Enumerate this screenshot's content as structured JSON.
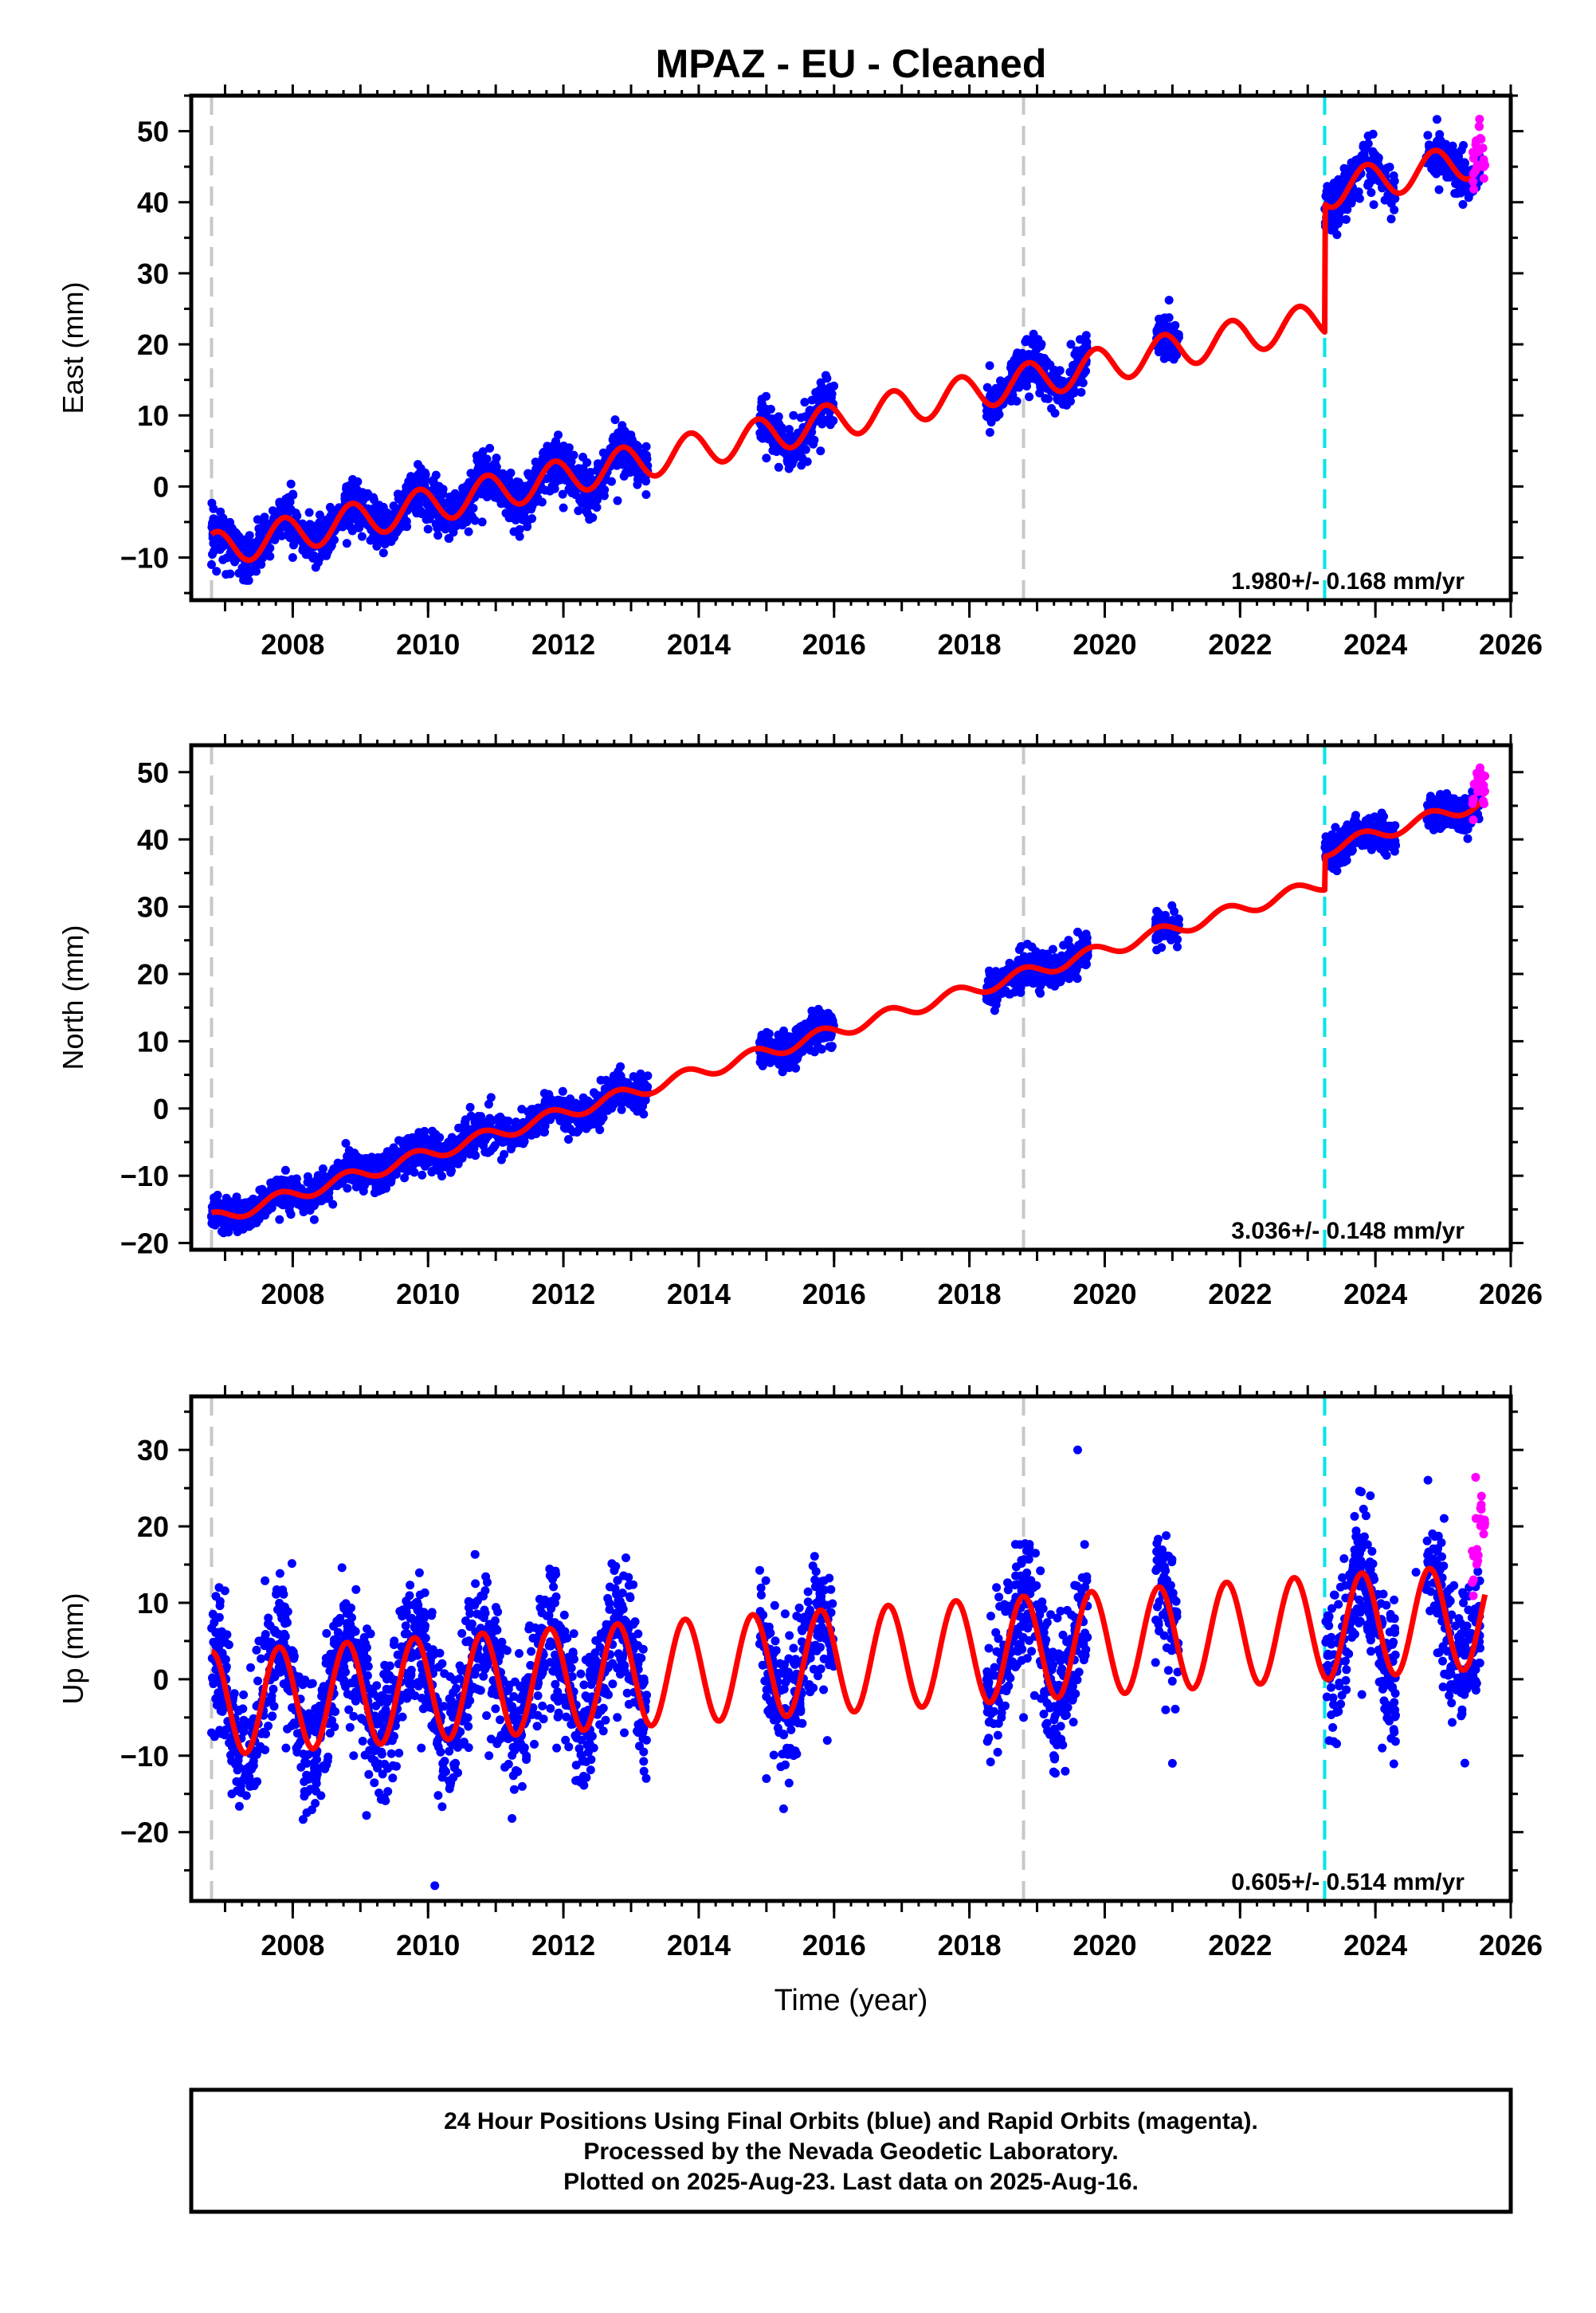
{
  "title": "MPAZ  - EU - Cleaned",
  "footer": {
    "line1": "24 Hour Positions Using Final Orbits (blue) and Rapid Orbits (magenta).",
    "line2": "Processed by the Nevada Geodetic Laboratory.",
    "line3": "Plotted on 2025-Aug-23. Last data on 2025-Aug-16."
  },
  "colors": {
    "final_orbits": "#0000ff",
    "rapid_orbits": "#ff00ff",
    "model_fit": "#ff0000",
    "equipment_change": "#c8c8c8",
    "earthquake": "#00e6e6"
  },
  "chart_data": [
    {
      "type": "scatter",
      "panel": "east",
      "ylabel": "East (mm)",
      "xlabel": "",
      "xlim": [
        2006.5,
        2026.0
      ],
      "ylim": [
        -16,
        55
      ],
      "xticks": [
        "2008",
        "2010",
        "2012",
        "2014",
        "2016",
        "2018",
        "2020",
        "2022",
        "2024",
        "2026"
      ],
      "yticks": [
        "50",
        "40",
        "30",
        "20",
        "10",
        "0",
        "−10"
      ],
      "rate_text": "1.980+/- 0.168 mm/yr",
      "series": [
        {
          "name": "Final Orbits",
          "x": [
            2006.8,
            2007.2,
            2007.6,
            2008.0,
            2008.4,
            2008.8,
            2009.2,
            2009.6,
            2010.0,
            2010.4,
            2010.8,
            2011.2,
            2011.6,
            2012.0,
            2012.4,
            2012.8,
            2013.1,
            2015.0,
            2015.4,
            2015.8,
            2018.3,
            2018.7,
            2019.1,
            2019.5,
            2020.8,
            2021.0,
            2023.3,
            2023.7,
            2024.1,
            2024.9,
            2025.3
          ],
          "y": [
            -11,
            -8,
            -6,
            -10,
            -4,
            -8,
            -5,
            -3,
            -6,
            -1,
            -5,
            -2,
            0,
            -3,
            2,
            -2,
            1,
            4,
            10,
            5,
            17,
            12,
            16,
            20,
            20,
            19,
            42,
            44,
            42,
            44,
            48
          ]
        },
        {
          "name": "Rapid Orbits",
          "x": [
            2025.45,
            2025.5,
            2025.55,
            2025.6
          ],
          "y": [
            44,
            47,
            49,
            46
          ]
        }
      ],
      "model_params": {
        "t0": 2006.8,
        "y0": -9.0,
        "rate": 1.98,
        "annual_amp": 2.5,
        "annual_phase": 0.62,
        "offsets": [
          {
            "t": 2023.25,
            "size": 18.0
          }
        ]
      },
      "vlines": {
        "equipment": [
          2006.8,
          2018.8
        ],
        "earthquake": [
          2023.25
        ]
      }
    },
    {
      "type": "scatter",
      "panel": "north",
      "ylabel": "North (mm)",
      "xlabel": "",
      "xlim": [
        2006.5,
        2026.0
      ],
      "ylim": [
        -21,
        54
      ],
      "xticks": [
        "2008",
        "2010",
        "2012",
        "2014",
        "2016",
        "2018",
        "2020",
        "2022",
        "2024",
        "2026"
      ],
      "yticks": [
        "50",
        "40",
        "30",
        "20",
        "10",
        "0",
        "−10",
        "−20"
      ],
      "rate_text": "3.036+/- 0.148 mm/yr",
      "series": [
        {
          "name": "Final Orbits",
          "x": [
            2006.8,
            2007.3,
            2007.8,
            2008.3,
            2008.8,
            2009.3,
            2009.8,
            2010.3,
            2010.8,
            2011.3,
            2011.8,
            2012.3,
            2012.8,
            2013.1,
            2015.0,
            2015.5,
            2015.9,
            2018.3,
            2018.7,
            2019.2,
            2019.6,
            2020.8,
            2021.0,
            2023.3,
            2023.8,
            2024.2,
            2024.9,
            2025.3
          ],
          "y": [
            -16,
            -14,
            -14,
            -11,
            -10,
            -8,
            -7,
            -5,
            -5,
            -2,
            -1,
            1,
            2,
            4,
            10,
            12,
            13,
            20,
            19,
            22,
            22,
            27,
            28,
            40,
            40,
            42,
            44,
            45
          ]
        },
        {
          "name": "Rapid Orbits",
          "x": [
            2025.45,
            2025.5,
            2025.55,
            2025.6
          ],
          "y": [
            46,
            48,
            50,
            47
          ]
        }
      ],
      "model_params": {
        "t0": 2006.8,
        "y0": -16.5,
        "rate": 3.036,
        "annual_amp": 1.0,
        "annual_phase": 0.55,
        "offsets": [
          {
            "t": 2023.25,
            "size": 5.0
          }
        ]
      },
      "vlines": {
        "equipment": [
          2006.8,
          2018.8
        ],
        "earthquake": [
          2023.25
        ]
      }
    },
    {
      "type": "scatter",
      "panel": "up",
      "ylabel": "Up (mm)",
      "xlabel": "Time (year)",
      "xlim": [
        2006.5,
        2026.0
      ],
      "ylim": [
        -29,
        37
      ],
      "xticks": [
        "2008",
        "2010",
        "2012",
        "2014",
        "2016",
        "2018",
        "2020",
        "2022",
        "2024",
        "2026"
      ],
      "yticks": [
        "30",
        "20",
        "10",
        "0",
        "−10",
        "−20"
      ],
      "rate_text": "0.605+/- 0.514 mm/yr",
      "series": [
        {
          "name": "Final Orbits",
          "x": [
            2006.8,
            2007.1,
            2007.5,
            2007.9,
            2008.5,
            2008.9,
            2009.5,
            2009.9,
            2010.1,
            2010.5,
            2010.9,
            2011.5,
            2011.9,
            2012.5,
            2012.9,
            2015.0,
            2015.5,
            2015.9,
            2018.4,
            2018.8,
            2019.3,
            2019.6,
            2020.9,
            2021.0,
            2023.4,
            2023.8,
            2024.1,
            2024.6,
            2025.0,
            2025.3
          ],
          "y": [
            -7,
            -15,
            5,
            -9,
            6,
            -10,
            5,
            -9,
            -27,
            6,
            -10,
            7,
            -9,
            5,
            -7,
            -13,
            8,
            -8,
            12,
            -5,
            8,
            30,
            -4,
            -11,
            11,
            -2,
            -9,
            14,
            -1,
            10
          ]
        },
        {
          "name": "Rapid Orbits",
          "x": [
            2025.45,
            2025.5,
            2025.55,
            2025.6
          ],
          "y": [
            13,
            17,
            21,
            19
          ]
        }
      ],
      "model_params": {
        "t0": 2006.8,
        "y0": -3.2,
        "rate": 0.605,
        "annual_amp": 6.8,
        "annual_phase": 0.55,
        "offsets": []
      },
      "vlines": {
        "equipment": [
          2006.8,
          2018.8
        ],
        "earthquake": [
          2023.25
        ]
      }
    }
  ]
}
